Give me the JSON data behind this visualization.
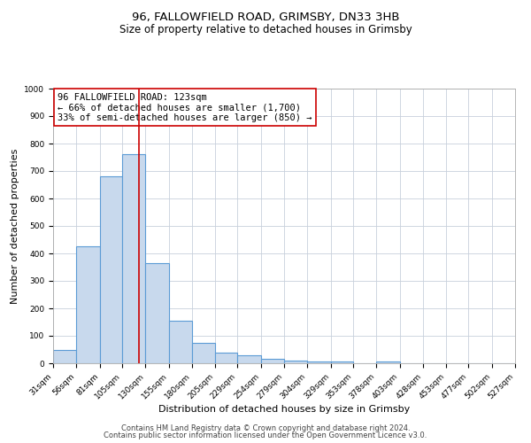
{
  "title": "96, FALLOWFIELD ROAD, GRIMSBY, DN33 3HB",
  "subtitle": "Size of property relative to detached houses in Grimsby",
  "xlabel": "Distribution of detached houses by size in Grimsby",
  "ylabel": "Number of detached properties",
  "bin_edges": [
    31,
    56,
    81,
    105,
    130,
    155,
    180,
    205,
    229,
    254,
    279,
    304,
    329,
    353,
    378,
    403,
    428,
    453,
    477,
    502,
    527
  ],
  "bin_heights": [
    50,
    425,
    680,
    760,
    365,
    155,
    75,
    40,
    30,
    15,
    10,
    5,
    5,
    0,
    5,
    0,
    0,
    0,
    0,
    0
  ],
  "bar_facecolor": "#c8d9ed",
  "bar_edgecolor": "#5b9bd5",
  "bar_linewidth": 0.8,
  "redline_x": 123,
  "redline_color": "#cc0000",
  "redline_linewidth": 1.2,
  "annotation_text": "96 FALLOWFIELD ROAD: 123sqm\n← 66% of detached houses are smaller (1,700)\n33% of semi-detached houses are larger (850) →",
  "annotation_box_edgecolor": "#cc0000",
  "annotation_box_facecolor": "#ffffff",
  "ylim": [
    0,
    1000
  ],
  "yticks": [
    0,
    100,
    200,
    300,
    400,
    500,
    600,
    700,
    800,
    900,
    1000
  ],
  "grid_color": "#c8d0dc",
  "grid_linewidth": 0.6,
  "background_color": "#ffffff",
  "footer1": "Contains HM Land Registry data © Crown copyright and database right 2024.",
  "footer2": "Contains public sector information licensed under the Open Government Licence v3.0.",
  "title_fontsize": 9.5,
  "subtitle_fontsize": 8.5,
  "xlabel_fontsize": 8,
  "ylabel_fontsize": 8,
  "tick_fontsize": 6.5,
  "annotation_fontsize": 7.5,
  "footer_fontsize": 6
}
